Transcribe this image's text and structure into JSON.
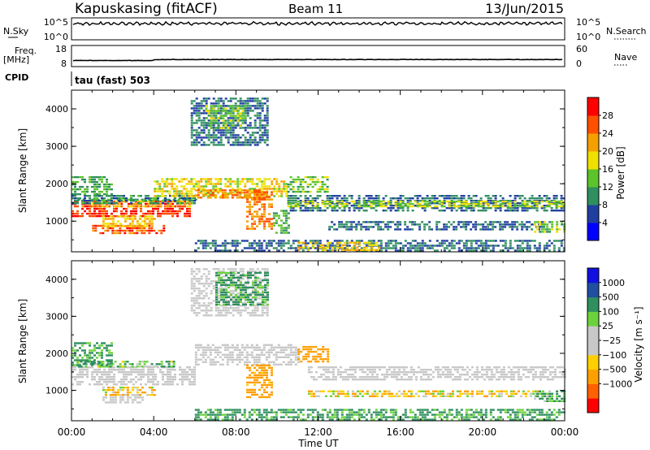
{
  "header": {
    "station": "Kapuskasing (fitACF)",
    "beam": "Beam 11",
    "date": "13/Jun/2015"
  },
  "params": {
    "nsky_label": "N.Sky",
    "nsky_top": "10^5",
    "nsky_bottom": "10^0",
    "nsearch_label": "N.Search",
    "nsearch_top": "10^5",
    "nsearch_bottom": "10^0",
    "freq_label": "Freq.",
    "freq_unit": "[MHz]",
    "freq_top": "18",
    "freq_bottom": "8",
    "nave_label": "Nave",
    "nave_top": "60",
    "nave_bottom": "0",
    "cpid_label": "CPID",
    "cpid_value": "tau (fast) 503"
  },
  "axes": {
    "ylabel": "Slant Range [km]",
    "xlabel": "Time UT",
    "x_ticks": [
      "00:00",
      "04:00",
      "08:00",
      "12:00",
      "16:00",
      "20:00",
      "00:00"
    ],
    "x_range_hours": [
      0,
      24
    ],
    "y_ticks": [
      "1000",
      "2000",
      "3000",
      "4000"
    ],
    "y_range_km": [
      180,
      4500
    ]
  },
  "colors": {
    "power": [
      "#0000ff",
      "#1f3fa0",
      "#2f8f5f",
      "#5cc32a",
      "#f0e000",
      "#f5a000",
      "#ff5000",
      "#ff0000"
    ],
    "velocity": [
      "#ff0000",
      "#ff6000",
      "#ffa000",
      "#ffd000",
      "#c8c8c8",
      "#c8c8c8",
      "#6cd23c",
      "#2f8f5f",
      "#1f4fa0",
      "#1010e0"
    ],
    "velocity_gray": "#c8c8c8"
  },
  "chart_data": [
    {
      "type": "heatmap",
      "name": "power",
      "colorbar_label": "Power [dB]",
      "colorbar_ticks": [
        "4",
        "8",
        "12",
        "16",
        "20",
        "24",
        "28"
      ],
      "colorbar_range": [
        0,
        32
      ],
      "xlim_hours": [
        0,
        24
      ],
      "ylim_km": [
        180,
        4500
      ],
      "regions": [
        {
          "t": [
            0.0,
            5.8
          ],
          "r": [
            1150,
            1550
          ],
          "v": 28
        },
        {
          "t": [
            0.5,
            5.8
          ],
          "r": [
            1400,
            1550
          ],
          "v": 22
        },
        {
          "t": [
            0.3,
            6.0
          ],
          "r": [
            1550,
            1600
          ],
          "v": 12
        },
        {
          "t": [
            1.0,
            4.5
          ],
          "r": [
            700,
            900
          ],
          "v": 26
        },
        {
          "t": [
            1.5,
            4.0
          ],
          "r": [
            850,
            1150
          ],
          "v": 20
        },
        {
          "t": [
            0.0,
            6.0
          ],
          "r": [
            1500,
            1700
          ],
          "v": 10
        },
        {
          "t": [
            0.0,
            2.0
          ],
          "r": [
            1700,
            2200
          ],
          "v": 12
        },
        {
          "t": [
            4.0,
            10.5
          ],
          "r": [
            1650,
            2150
          ],
          "v": 18
        },
        {
          "t": [
            6.0,
            9.5
          ],
          "r": [
            1600,
            1850
          ],
          "v": 24
        },
        {
          "t": [
            8.5,
            9.8
          ],
          "r": [
            800,
            1800
          ],
          "v": 24
        },
        {
          "t": [
            9.8,
            10.6
          ],
          "r": [
            700,
            1300
          ],
          "v": 12
        },
        {
          "t": [
            5.8,
            9.5
          ],
          "r": [
            3000,
            4300
          ],
          "v": 8
        },
        {
          "t": [
            6.5,
            8.5
          ],
          "r": [
            3500,
            4100
          ],
          "v": 14
        },
        {
          "t": [
            10.5,
            24.0
          ],
          "r": [
            1250,
            1700
          ],
          "v": 8
        },
        {
          "t": [
            10.5,
            24.0
          ],
          "r": [
            1380,
            1550
          ],
          "v": 16
        },
        {
          "t": [
            12.5,
            23.0
          ],
          "r": [
            800,
            1000
          ],
          "v": 8
        },
        {
          "t": [
            6.0,
            24.0
          ],
          "r": [
            200,
            500
          ],
          "v": 8
        },
        {
          "t": [
            11.0,
            15.0
          ],
          "r": [
            250,
            450
          ],
          "v": 20
        },
        {
          "t": [
            22.5,
            24.0
          ],
          "r": [
            700,
            1000
          ],
          "v": 14
        },
        {
          "t": [
            10.5,
            12.5
          ],
          "r": [
            1800,
            2200
          ],
          "v": 14
        }
      ]
    },
    {
      "type": "heatmap",
      "name": "velocity",
      "colorbar_label": "Velocity [m s⁻¹]",
      "colorbar_ticks": [
        "1000",
        "500",
        "100",
        "25",
        "−25",
        "−100",
        "−500",
        "−1000"
      ],
      "colorbar_range": [
        -1500,
        1500
      ],
      "xlim_hours": [
        0,
        24
      ],
      "ylim_km": [
        180,
        4500
      ],
      "regions": [
        {
          "t": [
            0.0,
            6.0
          ],
          "r": [
            1150,
            1650
          ],
          "v": 0,
          "gs": true
        },
        {
          "t": [
            0.3,
            5.0
          ],
          "r": [
            1650,
            1800
          ],
          "v": 80
        },
        {
          "t": [
            1.5,
            3.5
          ],
          "r": [
            700,
            900
          ],
          "v": 0,
          "gs": true
        },
        {
          "t": [
            1.5,
            4.0
          ],
          "r": [
            850,
            1100
          ],
          "v": -80
        },
        {
          "t": [
            0.0,
            2.0
          ],
          "r": [
            1700,
            2300
          ],
          "v": 150
        },
        {
          "t": [
            6.0,
            11.0
          ],
          "r": [
            1700,
            2250
          ],
          "v": 0,
          "gs": true
        },
        {
          "t": [
            8.5,
            9.8
          ],
          "r": [
            800,
            1700
          ],
          "v": -200
        },
        {
          "t": [
            11.0,
            12.5
          ],
          "r": [
            1800,
            2200
          ],
          "v": -300
        },
        {
          "t": [
            11.5,
            24.0
          ],
          "r": [
            1300,
            1650
          ],
          "v": 0,
          "gs": true
        },
        {
          "t": [
            11.5,
            23.0
          ],
          "r": [
            850,
            1000
          ],
          "v": -50
        },
        {
          "t": [
            5.8,
            9.5
          ],
          "r": [
            3000,
            4300
          ],
          "v": 40,
          "gs": true
        },
        {
          "t": [
            7.0,
            9.5
          ],
          "r": [
            3300,
            4200
          ],
          "v": 150
        },
        {
          "t": [
            6.0,
            24.0
          ],
          "r": [
            200,
            500
          ],
          "v": 150
        },
        {
          "t": [
            22.5,
            24.0
          ],
          "r": [
            700,
            1000
          ],
          "v": 120
        }
      ]
    }
  ]
}
